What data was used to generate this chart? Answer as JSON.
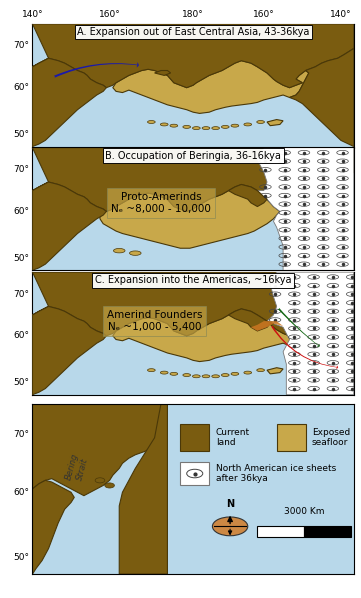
{
  "fig_width": 3.61,
  "fig_height": 5.98,
  "dpi": 100,
  "ocean_color": "#b8d8ea",
  "land_color": "#7a5c10",
  "exposed_seafloor_color": "#c8a84a",
  "ice_color": "#ffffff",
  "land_outline": "#4a3808",
  "background_color": "#ffffff",
  "panel_titles": [
    "A. Expansion out of East Central Asia, 43-36kya",
    "B. Occupation of Beringia, 36-16kya",
    "C. Expansion into the Americas, ~16kya"
  ],
  "lon_labels": [
    "140°",
    "160°",
    "180°",
    "160°",
    "140°"
  ],
  "lat_labels": [
    "70°",
    "60°",
    "50°"
  ],
  "annotation_B_line1": "Proto-Amerinds",
  "annotation_B_line2": "Nₑ ~8,000 - 10,000",
  "annotation_C_line1": "Amerind Founders",
  "annotation_C_line2": "Nₑ ~1,000 - 5,400",
  "scale_label": "3000 Km",
  "bering_strait_label": "Bering\nStrait"
}
